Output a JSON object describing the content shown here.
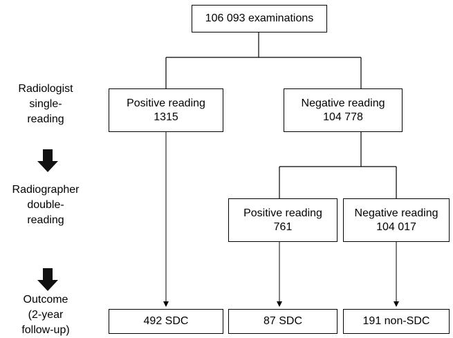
{
  "top_box": {
    "label": "106 093 examinations"
  },
  "level1": {
    "left": {
      "label": "Positive reading",
      "count": "1315"
    },
    "right": {
      "label": "Negative reading",
      "count": "104 778"
    }
  },
  "level2": {
    "left": {
      "label": "Positive reading",
      "count": "761"
    },
    "right": {
      "label": "Negative reading",
      "count": "104 017"
    }
  },
  "outcomes": {
    "a": "492 SDC",
    "b": "87 SDC",
    "c": "191 non-SDC"
  },
  "side_labels": {
    "stage1": [
      "Radiologist",
      "single-",
      "reading"
    ],
    "stage2": [
      "Radiographer",
      "double-",
      "reading"
    ],
    "stage3": [
      "Outcome",
      "(2-year",
      "follow-up)"
    ]
  }
}
